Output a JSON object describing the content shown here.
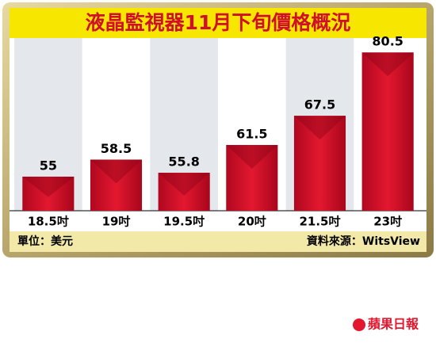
{
  "chart_data": {
    "type": "bar",
    "title": "液晶監視器11月下旬價格概況",
    "categories": [
      "18.5吋",
      "19吋",
      "19.5吋",
      "20吋",
      "21.5吋",
      "23吋"
    ],
    "values": [
      55,
      58.5,
      55.8,
      61.5,
      67.5,
      80.5
    ],
    "color": "#d0102a",
    "ylim": [
      48,
      82
    ],
    "unit_note": "單位：美元",
    "source": "資料來源：WitsView"
  },
  "logo": "蘋果日報"
}
